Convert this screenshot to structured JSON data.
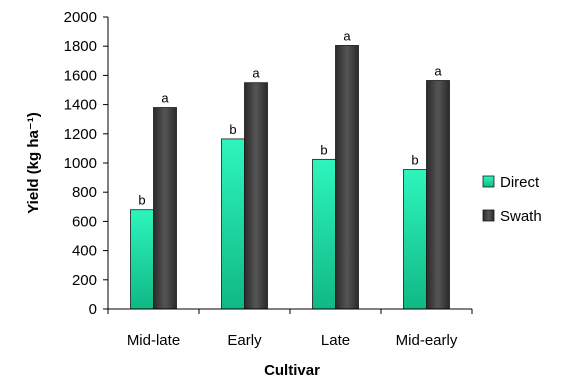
{
  "chart_data": {
    "type": "bar",
    "xlabel": "Cultivar",
    "ylabel": "Yield (kg ha⁻¹)",
    "ylim": [
      0,
      2000
    ],
    "yticks": [
      0,
      200,
      400,
      600,
      800,
      1000,
      1200,
      1400,
      1600,
      1800,
      2000
    ],
    "categories": [
      "Mid-late",
      "Early",
      "Late",
      "Mid-early"
    ],
    "grid": false,
    "legend": "right",
    "series": [
      {
        "name": "Direct",
        "color": "#1fd9a4",
        "values": [
          680,
          1165,
          1025,
          955
        ],
        "labels": [
          "b",
          "b",
          "b",
          "b"
        ]
      },
      {
        "name": "Swath",
        "color": "#3a3a3a",
        "values": [
          1380,
          1550,
          1805,
          1565
        ],
        "labels": [
          "a",
          "a",
          "a",
          "a"
        ]
      }
    ]
  }
}
